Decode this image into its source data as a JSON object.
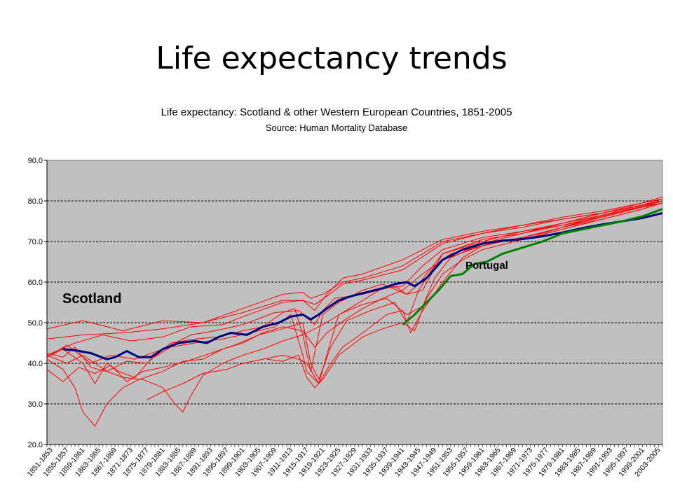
{
  "slide": {
    "title": "Life expectancy trends"
  },
  "chart_data": {
    "type": "line",
    "title": "Life expectancy: Scotland & other Western European Countries, 1851-2005",
    "subtitle": "Source: Human Mortality Database",
    "xlabel": "",
    "ylabel": "",
    "ylim": [
      20,
      90
    ],
    "yticks": [
      "20.0",
      "30.0",
      "40.0",
      "50.0",
      "60.0",
      "70.0",
      "80.0",
      "90.0"
    ],
    "grid": "horizontal dashed",
    "x_labels": [
      "1851-1853",
      "1855-1857",
      "1859-1861",
      "1863-1865",
      "1867-1869",
      "1871-1873",
      "1875-1877",
      "1879-1881",
      "1883-1885",
      "1887-1889",
      "1891-1893",
      "1895-1897",
      "1899-1901",
      "1903-1905",
      "1907-1909",
      "1911-1913",
      "1915-1917",
      "1919-1921",
      "1923-1925",
      "1927-1929",
      "1931-1933",
      "1935-1937",
      "1939-1941",
      "1943-1945",
      "1947-1949",
      "1951-1953",
      "1955-1957",
      "1959-1961",
      "1963-1965",
      "1967-1969",
      "1971-1973",
      "1975-1977",
      "1979-1981",
      "1983-1985",
      "1987-1989",
      "1991-1993",
      "1995-1997",
      "1999-2001",
      "2003-2005"
    ],
    "annotations": [
      {
        "text": "Scotland",
        "series": "Scotland"
      },
      {
        "text": "Portugal",
        "series": "Portugal"
      }
    ],
    "colors": {
      "scotland": "#00007f",
      "portugal": "#008000",
      "others": "#ff0000",
      "plot_bg": "#c0c0c0"
    },
    "series": [
      {
        "name": "Scotland",
        "color": "#00007f",
        "x": [
          1855,
          1858,
          1862,
          1866,
          1868,
          1871,
          1874,
          1877,
          1880,
          1884,
          1888,
          1891,
          1894,
          1897,
          1901,
          1905,
          1909,
          1912,
          1915,
          1917,
          1919,
          1921,
          1924,
          1927,
          1931,
          1935,
          1938,
          1941,
          1943,
          1946,
          1950,
          1955,
          1960,
          1965,
          1970,
          1975,
          1980,
          1985,
          1990,
          1995,
          2000,
          2005
        ],
        "y": [
          43.5,
          43.2,
          42.5,
          41.0,
          41.5,
          43.0,
          41.5,
          41.5,
          43.5,
          45.0,
          45.5,
          45.0,
          46.5,
          47.5,
          47.0,
          49.0,
          50.0,
          51.5,
          52.0,
          50.8,
          52.0,
          53.5,
          55.5,
          56.5,
          57.5,
          58.5,
          59.5,
          60.0,
          59.0,
          61.0,
          65.5,
          68.0,
          69.5,
          70.2,
          70.6,
          71.3,
          72.2,
          73.3,
          74.2,
          75.0,
          75.8,
          77.0
        ]
      },
      {
        "name": "Portugal",
        "color": "#008000",
        "x": [
          1940,
          1943,
          1946,
          1949,
          1952,
          1955,
          1958,
          1961,
          1965,
          1970,
          1975,
          1980,
          1985,
          1990,
          1995,
          2000,
          2005
        ],
        "y": [
          49.5,
          52.0,
          55.0,
          58.0,
          61.5,
          62.0,
          64.5,
          65.0,
          67.0,
          68.5,
          70.0,
          72.0,
          73.0,
          74.0,
          75.0,
          76.2,
          78.0
        ]
      },
      {
        "color": "#ff0000",
        "x": [
          1851,
          1860,
          1870,
          1880,
          1890,
          1900,
          1910,
          1915,
          1917,
          1920,
          1925,
          1930,
          1940,
          1950,
          1960,
          1970,
          1980,
          1990,
          2000,
          2005
        ],
        "y": [
          48.5,
          50.5,
          48.0,
          50.5,
          50.0,
          53.5,
          57.0,
          57.5,
          56.0,
          57.0,
          60.0,
          61.0,
          64.0,
          70.0,
          72.0,
          74.0,
          76.0,
          77.5,
          79.5,
          80.5
        ]
      },
      {
        "color": "#ff0000",
        "x": [
          1851,
          1860,
          1870,
          1880,
          1890,
          1900,
          1910,
          1915,
          1918,
          1921,
          1925,
          1930,
          1940,
          1950,
          1960,
          1970,
          1980,
          1990,
          2000,
          2005
        ],
        "y": [
          46.0,
          47.0,
          47.5,
          48.5,
          50.0,
          52.5,
          55.5,
          55.5,
          53.0,
          57.0,
          61.0,
          62.0,
          65.5,
          70.5,
          72.5,
          74.0,
          75.5,
          77.0,
          79.0,
          80.5
        ]
      },
      {
        "color": "#ff0000",
        "x": [
          1851,
          1858,
          1865,
          1872,
          1880,
          1887,
          1895,
          1900,
          1910,
          1915,
          1918,
          1921,
          1925,
          1930,
          1940,
          1950,
          1960,
          1970,
          1980,
          1990,
          2000,
          2005
        ],
        "y": [
          42.0,
          45.0,
          47.0,
          45.5,
          46.5,
          49.0,
          49.5,
          51.5,
          55.0,
          55.5,
          54.5,
          56.5,
          59.5,
          60.5,
          63.0,
          69.5,
          72.0,
          73.5,
          75.5,
          77.0,
          79.0,
          80.0
        ]
      },
      {
        "color": "#ff0000",
        "x": [
          1851,
          1856,
          1862,
          1867,
          1873,
          1880,
          1887,
          1893,
          1900,
          1908,
          1914,
          1918,
          1920,
          1923,
          1930,
          1938,
          1941,
          1944,
          1950,
          1960,
          1970,
          1980,
          1990,
          2000,
          2005
        ],
        "y": [
          41.5,
          44.5,
          40.0,
          42.0,
          41.0,
          43.5,
          47.0,
          48.0,
          49.5,
          52.5,
          53.0,
          49.5,
          53.0,
          56.0,
          57.0,
          59.0,
          57.0,
          59.5,
          67.0,
          70.5,
          72.0,
          74.0,
          76.5,
          79.0,
          80.0
        ]
      },
      {
        "color": "#ff0000",
        "x": [
          1851,
          1856,
          1860,
          1866,
          1871,
          1876,
          1882,
          1888,
          1894,
          1900,
          1905,
          1910,
          1913,
          1915,
          1917,
          1920,
          1924,
          1930,
          1935,
          1941,
          1945,
          1950,
          1960,
          1970,
          1980,
          1990,
          2000,
          2005
        ],
        "y": [
          42.0,
          40.0,
          42.0,
          38.0,
          40.5,
          40.0,
          45.0,
          46.0,
          46.5,
          48.0,
          49.0,
          52.5,
          53.5,
          47.0,
          38.0,
          52.0,
          55.0,
          58.0,
          59.5,
          57.0,
          58.0,
          67.0,
          70.0,
          72.5,
          74.5,
          77.0,
          79.5,
          81.0
        ]
      },
      {
        "color": "#ff0000",
        "x": [
          1851,
          1855,
          1860,
          1863,
          1866,
          1869,
          1873,
          1877,
          1882,
          1888,
          1895,
          1902,
          1908,
          1912,
          1915,
          1916,
          1919,
          1921,
          1924,
          1930,
          1936,
          1941,
          1945,
          1948,
          1952,
          1960,
          1970,
          1980,
          1990,
          2000,
          2005
        ],
        "y": [
          41.5,
          43.5,
          40.0,
          35.0,
          40.0,
          38.0,
          36.5,
          41.0,
          44.0,
          45.0,
          46.0,
          47.5,
          49.0,
          52.0,
          42.0,
          38.0,
          35.0,
          42.0,
          52.0,
          54.5,
          56.0,
          52.0,
          54.0,
          61.0,
          66.0,
          69.5,
          72.0,
          74.5,
          76.5,
          78.5,
          79.5
        ]
      },
      {
        "color": "#ff0000",
        "x": [
          1851,
          1855,
          1859,
          1863,
          1867,
          1871,
          1875,
          1880,
          1886,
          1892,
          1898,
          1904,
          1910,
          1915,
          1917,
          1919,
          1922,
          1926,
          1932,
          1938,
          1941,
          1944,
          1948,
          1952,
          1958,
          1965,
          1975,
          1985,
          1995,
          2005
        ],
        "y": [
          38.5,
          35.5,
          39.0,
          37.5,
          39.5,
          35.5,
          38.0,
          39.0,
          40.5,
          42.5,
          44.5,
          47.0,
          48.5,
          50.0,
          40.0,
          36.0,
          44.0,
          50.5,
          53.0,
          55.0,
          50.0,
          58.0,
          64.0,
          67.0,
          68.5,
          70.0,
          72.0,
          75.0,
          77.5,
          80.0
        ]
      },
      {
        "color": "#ff0000",
        "x": [
          1851,
          1855,
          1858,
          1860,
          1863,
          1866,
          1870,
          1874,
          1880,
          1885,
          1890,
          1895,
          1900,
          1905,
          1910,
          1915,
          1918,
          1921,
          1926,
          1930,
          1935,
          1940,
          1945,
          1950,
          1960,
          1970,
          1980,
          1990,
          2000,
          2005
        ],
        "y": [
          41.0,
          38.5,
          34.0,
          28.0,
          24.5,
          30.0,
          34.0,
          36.0,
          38.0,
          40.5,
          41.0,
          43.5,
          45.0,
          47.5,
          49.0,
          48.0,
          44.0,
          47.5,
          51.0,
          53.5,
          56.0,
          58.0,
          62.0,
          65.5,
          69.0,
          71.0,
          73.5,
          75.5,
          78.0,
          79.5
        ]
      },
      {
        "color": "#ff0000",
        "x": [
          1851,
          1855,
          1858,
          1862,
          1866,
          1870,
          1875,
          1880,
          1883,
          1885,
          1887,
          1890,
          1895,
          1900,
          1905,
          1910,
          1915,
          1920,
          1925,
          1930,
          1935,
          1940,
          1945,
          1950,
          1960,
          1970,
          1980,
          1990,
          2000,
          2005
        ],
        "y": [
          42.5,
          41.5,
          44.0,
          39.0,
          38.0,
          36.5,
          36.0,
          34.0,
          30.0,
          28.0,
          32.0,
          37.0,
          40.0,
          42.0,
          43.5,
          45.5,
          47.0,
          49.5,
          52.5,
          55.5,
          58.5,
          59.0,
          64.0,
          68.0,
          71.0,
          72.5,
          74.0,
          76.0,
          78.5,
          80.0
        ]
      },
      {
        "color": "#ff0000",
        "x": [
          1876,
          1880,
          1885,
          1890,
          1896,
          1900,
          1905,
          1910,
          1914,
          1916,
          1919,
          1922,
          1925,
          1930,
          1936,
          1940,
          1942,
          1945,
          1950,
          1955,
          1960,
          1970,
          1980,
          1990,
          2000,
          2005
        ],
        "y": [
          31.0,
          33.0,
          35.0,
          37.5,
          38.5,
          40.0,
          41.0,
          42.0,
          41.0,
          40.0,
          35.0,
          40.0,
          44.0,
          47.5,
          52.0,
          53.0,
          47.5,
          53.0,
          60.0,
          66.0,
          69.0,
          71.0,
          73.5,
          76.0,
          78.5,
          79.5
        ]
      },
      {
        "color": "#ff0000",
        "x": [
          1906,
          1910,
          1914,
          1916,
          1918,
          1920,
          1924,
          1930,
          1935,
          1940,
          1943,
          1946,
          1950,
          1955,
          1960,
          1970,
          1980,
          1990,
          2000,
          2005
        ],
        "y": [
          41.0,
          40.5,
          42.0,
          36.5,
          34.0,
          36.0,
          42.0,
          46.5,
          48.5,
          50.0,
          48.0,
          56.0,
          62.0,
          65.5,
          68.0,
          70.5,
          73.0,
          75.5,
          78.0,
          79.5
        ]
      }
    ]
  }
}
